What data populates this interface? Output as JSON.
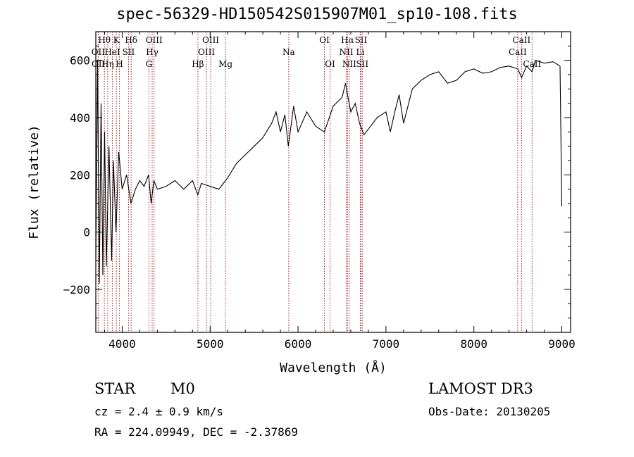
{
  "chart_data": {
    "type": "line",
    "title": "spec-56329-HD150542S015907M01_sp10-108.fits",
    "xlabel": "Wavelength (Å)",
    "ylabel": "Flux (relative)",
    "xlim": [
      3700,
      9100
    ],
    "ylim": [
      -350,
      700
    ],
    "xticks": [
      4000,
      5000,
      6000,
      7000,
      8000,
      9000
    ],
    "yticks": [
      -200,
      0,
      200,
      400,
      600
    ],
    "series": [
      {
        "name": "flux",
        "x": [
          3700,
          3720,
          3740,
          3760,
          3780,
          3800,
          3820,
          3850,
          3880,
          3900,
          3930,
          3960,
          4000,
          4050,
          4100,
          4150,
          4200,
          4250,
          4300,
          4330,
          4360,
          4400,
          4500,
          4600,
          4700,
          4800,
          4860,
          4900,
          5000,
          5100,
          5200,
          5300,
          5400,
          5500,
          5600,
          5700,
          5750,
          5800,
          5850,
          5890,
          5950,
          6000,
          6100,
          6200,
          6300,
          6400,
          6500,
          6540,
          6563,
          6600,
          6650,
          6700,
          6750,
          6800,
          6900,
          7000,
          7050,
          7100,
          7150,
          7200,
          7300,
          7400,
          7500,
          7600,
          7700,
          7800,
          7900,
          8000,
          8100,
          8200,
          8300,
          8400,
          8500,
          8542,
          8600,
          8662,
          8700,
          8800,
          8900,
          8980,
          9000
        ],
        "values": [
          -100,
          600,
          -180,
          450,
          -150,
          350,
          -120,
          300,
          -100,
          250,
          0,
          280,
          150,
          200,
          100,
          150,
          180,
          160,
          200,
          100,
          180,
          150,
          160,
          180,
          150,
          180,
          130,
          170,
          160,
          150,
          190,
          240,
          270,
          300,
          330,
          380,
          420,
          350,
          410,
          300,
          440,
          350,
          420,
          370,
          350,
          440,
          470,
          520,
          480,
          420,
          450,
          380,
          340,
          360,
          400,
          420,
          350,
          420,
          480,
          380,
          500,
          530,
          550,
          560,
          520,
          530,
          560,
          570,
          555,
          560,
          575,
          580,
          570,
          540,
          580,
          560,
          600,
          590,
          595,
          580,
          90
        ]
      }
    ],
    "lines": [
      {
        "label": "OII",
        "x": 3727,
        "row": 2
      },
      {
        "label": "OII",
        "x": 3729,
        "row": 3
      },
      {
        "label": "Hθ",
        "x": 3798,
        "row": 1
      },
      {
        "label": "Hη",
        "x": 3835,
        "row": 3
      },
      {
        "label": "HeI",
        "x": 3889,
        "row": 2
      },
      {
        "label": "K",
        "x": 3934,
        "row": 1
      },
      {
        "label": "H",
        "x": 3969,
        "row": 3
      },
      {
        "label": "SII",
        "x": 4072,
        "row": 2
      },
      {
        "label": "Hδ",
        "x": 4102,
        "row": 1
      },
      {
        "label": "G",
        "x": 4305,
        "row": 3
      },
      {
        "label": "Hγ",
        "x": 4341,
        "row": 2
      },
      {
        "label": "OIII",
        "x": 4363,
        "row": 1
      },
      {
        "label": "Hβ",
        "x": 4861,
        "row": 3
      },
      {
        "label": "OIII",
        "x": 4959,
        "row": 2
      },
      {
        "label": "OIII",
        "x": 5007,
        "row": 1
      },
      {
        "label": "Mg",
        "x": 5175,
        "row": 3
      },
      {
        "label": "Na",
        "x": 5894,
        "row": 2
      },
      {
        "label": "OI",
        "x": 6300,
        "row": 1
      },
      {
        "label": "OI",
        "x": 6364,
        "row": 3
      },
      {
        "label": "NII",
        "x": 6548,
        "row": 2
      },
      {
        "label": "Hα",
        "x": 6563,
        "row": 1
      },
      {
        "label": "NII",
        "x": 6583,
        "row": 3
      },
      {
        "label": "Li",
        "x": 6708,
        "row": 2
      },
      {
        "label": "SII",
        "x": 6716,
        "row": 1
      },
      {
        "label": "SII",
        "x": 6731,
        "row": 3
      },
      {
        "label": "CaII",
        "x": 8498,
        "row": 2
      },
      {
        "label": "CaII",
        "x": 8542,
        "row": 1
      },
      {
        "label": "CaII",
        "x": 8662,
        "row": 3
      }
    ]
  },
  "info": {
    "object_class": "STAR",
    "subclass": "M0",
    "cz": "cz = 2.4 ± 0.9 km/s",
    "coords": "RA = 224.09949, DEC =  -2.37869",
    "survey": "LAMOST DR3",
    "obs_date": "Obs-Date: 20130205"
  }
}
